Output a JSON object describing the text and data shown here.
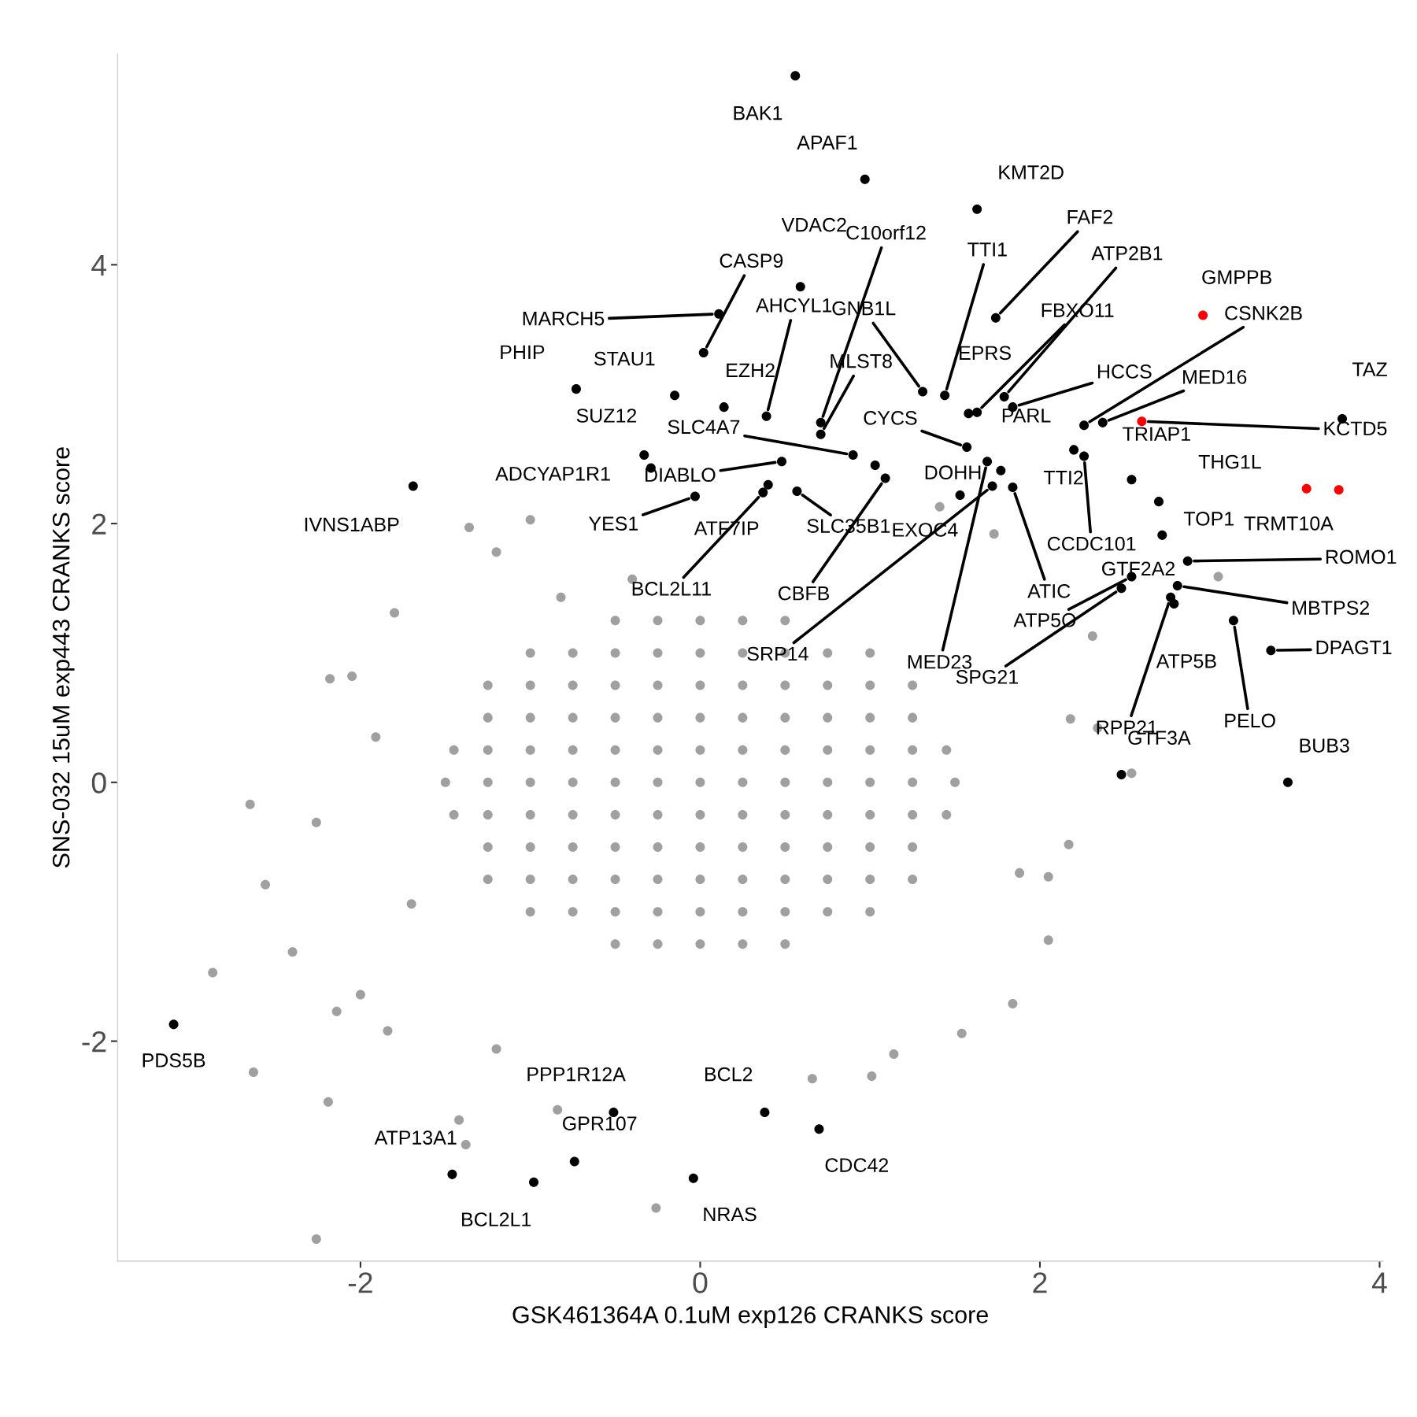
{
  "chart_data": {
    "type": "scatter",
    "xlabel": "GSK461364A 0.1uM exp126 CRANKS score",
    "ylabel": "SNS-032 15uM exp443 CRANKS score",
    "xlim": [
      -3.43,
      4.02
    ],
    "ylim": [
      -3.7,
      5.63
    ],
    "xticks": [
      -2,
      0,
      2,
      4
    ],
    "yticks": [
      -2,
      0,
      2,
      4
    ],
    "grid": false,
    "legend": false,
    "marker": "circle",
    "series": [
      {
        "color": "#a0a0a0",
        "x": [
          -0.5,
          -0.25,
          0,
          0.25,
          0.5,
          -1,
          -0.75,
          -0.5,
          -0.25,
          0,
          0.25,
          0.5,
          0.75,
          1,
          -1.25,
          -1,
          -0.75,
          -0.5,
          -0.25,
          0,
          0.25,
          0.5,
          0.75,
          1,
          1.25,
          -1.25,
          -1,
          -0.75,
          -0.5,
          -0.25,
          0,
          0.25,
          0.5,
          0.75,
          1,
          1.25,
          -1.45,
          -1.25,
          -1,
          -0.75,
          -0.5,
          -0.25,
          0,
          0.25,
          0.5,
          0.75,
          1,
          1.25,
          1.45,
          -1.5,
          -1.25,
          -1,
          -0.75,
          -0.5,
          -0.25,
          0,
          0.25,
          0.5,
          0.75,
          1,
          1.25,
          1.5,
          -1.45,
          -1.25,
          -1,
          -0.75,
          -0.5,
          -0.25,
          0,
          0.25,
          0.5,
          0.75,
          1,
          1.25,
          1.45,
          -1.25,
          -1,
          -0.75,
          -0.5,
          -0.25,
          0,
          0.25,
          0.5,
          0.75,
          1,
          1.25,
          -1.25,
          -1,
          -0.75,
          -0.5,
          -0.25,
          0,
          0.25,
          0.5,
          0.75,
          1,
          1.25,
          -1,
          -0.75,
          -0.5,
          -0.25,
          0,
          0.25,
          0.5,
          0.75,
          1,
          -0.5,
          -0.25,
          0,
          0.25,
          0.5,
          -2.65,
          -2.56,
          -2.87,
          -2.63,
          -2.26,
          -2.4,
          -2.19,
          -1.8,
          -1.36,
          -1.0,
          -0.26,
          2.31,
          3.05,
          2.54,
          2.17,
          2.05,
          1.84,
          1.54,
          1.01,
          0.66,
          -1.42,
          -1.38,
          -0.84,
          -2.14,
          -2.18,
          -2.05,
          -1.91,
          -2.26,
          2.34,
          2.18,
          2.05,
          1.88,
          1.14,
          -1.2,
          -1.84,
          -2.0,
          -1.7,
          1.73,
          1.41,
          -0.4,
          -0.82,
          -1.2
        ],
        "values": [
          1.25,
          1.25,
          1.25,
          1.25,
          1.25,
          1,
          1,
          1,
          1,
          1,
          1,
          1,
          1,
          1,
          0.75,
          0.75,
          0.75,
          0.75,
          0.75,
          0.75,
          0.75,
          0.75,
          0.75,
          0.75,
          0.75,
          0.5,
          0.5,
          0.5,
          0.5,
          0.5,
          0.5,
          0.5,
          0.5,
          0.5,
          0.5,
          0.5,
          0.25,
          0.25,
          0.25,
          0.25,
          0.25,
          0.25,
          0.25,
          0.25,
          0.25,
          0.25,
          0.25,
          0.25,
          0.25,
          0,
          0,
          0,
          0,
          0,
          0,
          0,
          0,
          0,
          0,
          0,
          0,
          0,
          -0.25,
          -0.25,
          -0.25,
          -0.25,
          -0.25,
          -0.25,
          -0.25,
          -0.25,
          -0.25,
          -0.25,
          -0.25,
          -0.25,
          -0.25,
          -0.5,
          -0.5,
          -0.5,
          -0.5,
          -0.5,
          -0.5,
          -0.5,
          -0.5,
          -0.5,
          -0.5,
          -0.5,
          -0.75,
          -0.75,
          -0.75,
          -0.75,
          -0.75,
          -0.75,
          -0.75,
          -0.75,
          -0.75,
          -0.75,
          -0.75,
          -1,
          -1,
          -1,
          -1,
          -1,
          -1,
          -1,
          -1,
          -1,
          -1.25,
          -1.25,
          -1.25,
          -1.25,
          -1.25,
          -0.17,
          -0.79,
          -1.47,
          -2.24,
          -3.53,
          -1.31,
          -2.47,
          1.31,
          1.97,
          2.03,
          -3.29,
          1.13,
          1.59,
          0.07,
          -0.48,
          -0.73,
          -1.71,
          -1.94,
          -2.27,
          -2.29,
          -2.61,
          -2.8,
          -2.53,
          -1.77,
          0.8,
          0.82,
          0.35,
          -0.31,
          0.42,
          0.49,
          -1.22,
          -0.7,
          -2.1,
          -2.06,
          -1.92,
          -1.64,
          -0.94,
          1.92,
          2.13,
          1.57,
          1.43,
          1.78
        ]
      },
      {
        "color": "#000000",
        "x": [
          0.56,
          0.97,
          1.63,
          0.59,
          0.71,
          0.02,
          0.11,
          -0.73,
          -0.15,
          0.14,
          0.39,
          0.71,
          1.31,
          1.44,
          1.58,
          1.63,
          1.79,
          1.74,
          1.84,
          2.26,
          2.37,
          2.2,
          2.26,
          2.54,
          3.78,
          2.7,
          2.72,
          2.87,
          2.54,
          2.48,
          2.81,
          2.77,
          2.79,
          3.14,
          3.36,
          3.46,
          2.48,
          -0.33,
          -0.29,
          0.48,
          -0.03,
          0.9,
          1.03,
          0.57,
          1.09,
          0.4,
          0.37,
          1.57,
          1.77,
          1.84,
          1.69,
          1.72,
          1.53,
          -1.69,
          -3.1,
          -0.51,
          0.38,
          0.7,
          -0.74,
          -1.46,
          -0.98,
          -0.04
        ],
        "values": [
          5.46,
          4.66,
          4.43,
          3.83,
          2.78,
          3.32,
          3.62,
          3.04,
          2.99,
          2.9,
          2.83,
          2.69,
          3.02,
          2.99,
          2.85,
          2.86,
          2.98,
          3.59,
          2.9,
          2.76,
          2.78,
          2.57,
          2.52,
          2.34,
          2.81,
          2.17,
          1.91,
          1.71,
          1.59,
          1.5,
          1.52,
          1.43,
          1.38,
          1.25,
          1.02,
          0.0,
          0.06,
          2.53,
          2.43,
          2.48,
          2.21,
          2.53,
          2.45,
          2.25,
          2.35,
          2.3,
          2.24,
          2.59,
          2.41,
          2.28,
          2.48,
          2.29,
          2.22,
          2.29,
          -1.87,
          -2.55,
          -2.55,
          -2.68,
          -2.93,
          -3.03,
          -3.09,
          -3.06
        ]
      },
      {
        "color": "#ff0000",
        "x": [
          2.96,
          2.6,
          3.57,
          3.76
        ],
        "values": [
          3.61,
          2.79,
          2.27,
          2.26
        ]
      }
    ],
    "annotations": [
      {
        "text": "BAK1",
        "x": 0.56,
        "y": 5.46
      },
      {
        "text": "APAF1",
        "x": 0.97,
        "y": 4.66
      },
      {
        "text": "KMT2D",
        "x": 1.63,
        "y": 4.43
      },
      {
        "text": "VDAC2",
        "x": 0.59,
        "y": 3.83
      },
      {
        "text": "C10orf12",
        "x": 0.71,
        "y": 2.78
      },
      {
        "text": "CASP9",
        "x": 0.02,
        "y": 3.32
      },
      {
        "text": "MARCH5",
        "x": 0.11,
        "y": 3.62
      },
      {
        "text": "PHIP",
        "x": -0.73,
        "y": 3.04
      },
      {
        "text": "STAU1",
        "x": -0.15,
        "y": 2.99
      },
      {
        "text": "EZH2",
        "x": 0.14,
        "y": 2.9
      },
      {
        "text": "AHCYL1",
        "x": 0.39,
        "y": 2.83
      },
      {
        "text": "MLST8",
        "x": 0.71,
        "y": 2.69
      },
      {
        "text": "GNB1L",
        "x": 1.31,
        "y": 3.02
      },
      {
        "text": "TTI1",
        "x": 1.44,
        "y": 2.99
      },
      {
        "text": "EPRS",
        "x": 1.58,
        "y": 2.85
      },
      {
        "text": "FBXO11",
        "x": 1.63,
        "y": 2.86
      },
      {
        "text": "ATP2B1",
        "x": 1.79,
        "y": 2.98
      },
      {
        "text": "FAF2",
        "x": 1.74,
        "y": 3.59
      },
      {
        "text": "HCCS",
        "x": 1.84,
        "y": 2.9
      },
      {
        "text": "CSNK2B",
        "x": 2.26,
        "y": 2.76
      },
      {
        "text": "MED16",
        "x": 2.37,
        "y": 2.78
      },
      {
        "text": "PARL",
        "x": 2.2,
        "y": 2.57
      },
      {
        "text": "CCDC101",
        "x": 2.26,
        "y": 2.52
      },
      {
        "text": "TRIAP1",
        "x": 2.54,
        "y": 2.34
      },
      {
        "text": "TAZ",
        "x": 3.78,
        "y": 2.81
      },
      {
        "text": "TOP1",
        "x": 2.7,
        "y": 2.17
      },
      {
        "text": "GTF2A2",
        "x": 2.72,
        "y": 1.91
      },
      {
        "text": "ROMO1",
        "x": 2.87,
        "y": 1.71
      },
      {
        "text": "ATP5O",
        "x": 2.54,
        "y": 1.59
      },
      {
        "text": "SPG21",
        "x": 2.48,
        "y": 1.5
      },
      {
        "text": "MBTPS2",
        "x": 2.81,
        "y": 1.52
      },
      {
        "text": "RPP21",
        "x": 2.77,
        "y": 1.43
      },
      {
        "text": "ATP5B",
        "x": 2.79,
        "y": 1.38
      },
      {
        "text": "PELO",
        "x": 3.14,
        "y": 1.25
      },
      {
        "text": "DPAGT1",
        "x": 3.36,
        "y": 1.02
      },
      {
        "text": "BUB3",
        "x": 3.46,
        "y": 0.0
      },
      {
        "text": "GTF3A",
        "x": 2.48,
        "y": 0.06
      },
      {
        "text": "SUZ12",
        "x": -0.33,
        "y": 2.53
      },
      {
        "text": "ADCYAP1R1",
        "x": -0.29,
        "y": 2.43
      },
      {
        "text": "DIABLO",
        "x": 0.48,
        "y": 2.48
      },
      {
        "text": "YES1",
        "x": -0.03,
        "y": 2.21
      },
      {
        "text": "SLC4A7",
        "x": 0.9,
        "y": 2.53
      },
      {
        "text": "DOHH",
        "x": 1.03,
        "y": 2.45
      },
      {
        "text": "SLC35B1",
        "x": 0.57,
        "y": 2.25
      },
      {
        "text": "CBFB",
        "x": 1.09,
        "y": 2.35
      },
      {
        "text": "ATF7IP",
        "x": 0.4,
        "y": 2.3
      },
      {
        "text": "BCL2L11",
        "x": 0.37,
        "y": 2.24
      },
      {
        "text": "CYCS",
        "x": 1.57,
        "y": 2.59
      },
      {
        "text": "TTI2",
        "x": 1.77,
        "y": 2.41
      },
      {
        "text": "ATIC",
        "x": 1.84,
        "y": 2.28
      },
      {
        "text": "MED23",
        "x": 1.69,
        "y": 2.48
      },
      {
        "text": "SRP14",
        "x": 1.72,
        "y": 2.29
      },
      {
        "text": "EXOC4",
        "x": 1.53,
        "y": 2.22
      },
      {
        "text": "IVNS1ABP",
        "x": -1.69,
        "y": 2.29
      },
      {
        "text": "PDS5B",
        "x": -3.1,
        "y": -1.87
      },
      {
        "text": "PPP1R12A",
        "x": -0.51,
        "y": -2.55
      },
      {
        "text": "BCL2",
        "x": 0.38,
        "y": -2.55
      },
      {
        "text": "CDC42",
        "x": 0.7,
        "y": -2.68
      },
      {
        "text": "GPR107",
        "x": -0.74,
        "y": -2.93
      },
      {
        "text": "ATP13A1",
        "x": -1.46,
        "y": -3.03
      },
      {
        "text": "BCL2L1",
        "x": -0.98,
        "y": -3.09
      },
      {
        "text": "NRAS",
        "x": -0.04,
        "y": -3.06
      },
      {
        "text": "GMPPB",
        "x": 2.96,
        "y": 3.61
      },
      {
        "text": "KCTD5",
        "x": 2.6,
        "y": 2.79
      },
      {
        "text": "THG1L",
        "x": 3.57,
        "y": 2.27
      },
      {
        "text": "TRMT10A",
        "x": 3.76,
        "y": 2.26
      }
    ]
  }
}
